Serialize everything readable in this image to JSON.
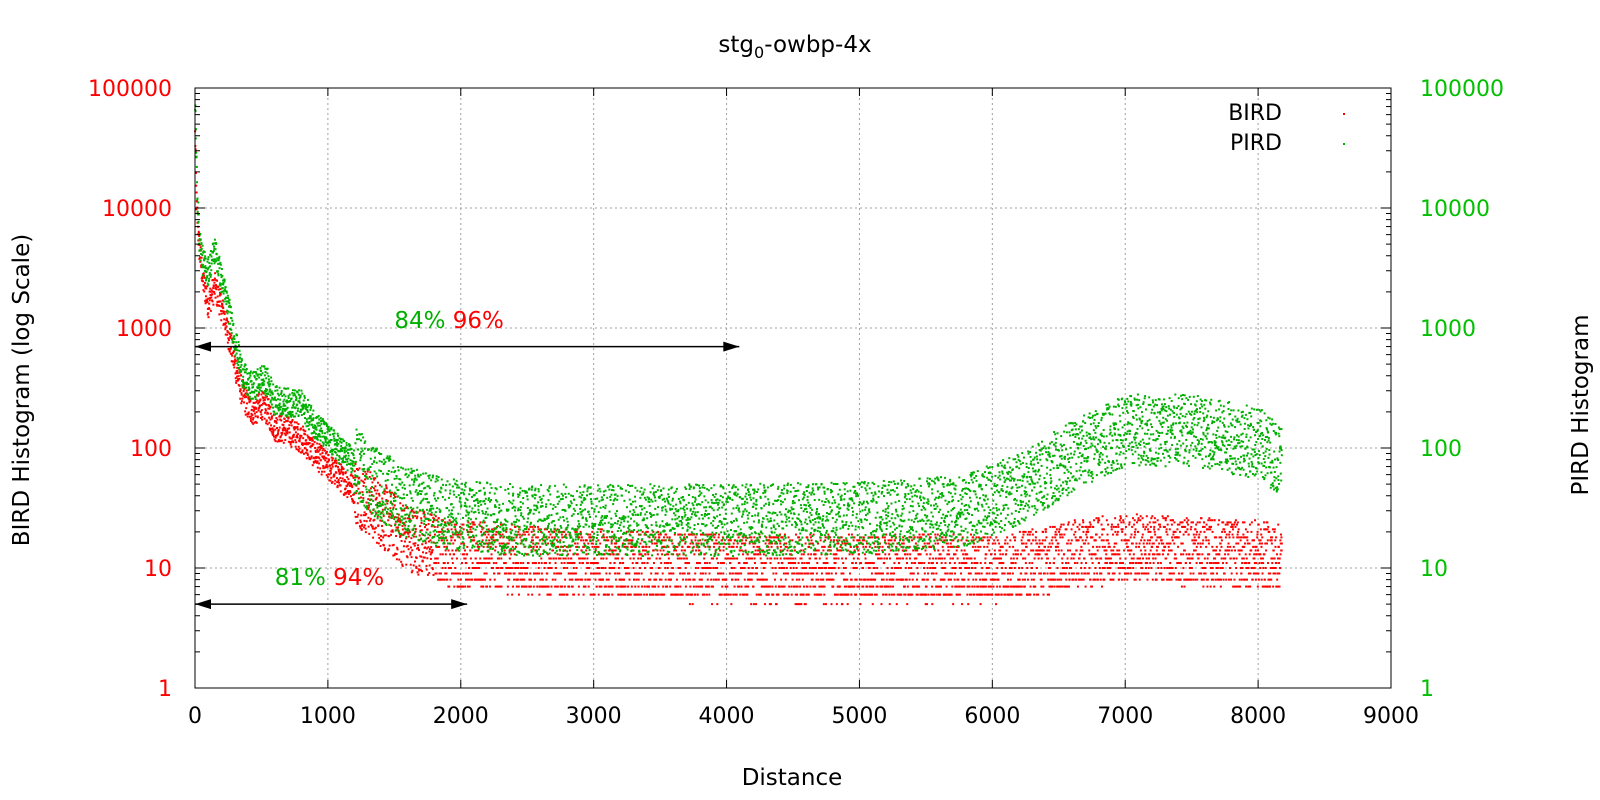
{
  "chart_data": {
    "type": "scatter",
    "title": {
      "base": "stg",
      "sub": "0",
      "rest": "-owbp-4x"
    },
    "xlabel": "Distance",
    "ylabel": "BIRD Histogram (log Scale)",
    "y2label": "PIRD Histogram",
    "xlim": [
      0,
      9000
    ],
    "ylim": [
      1,
      100000
    ],
    "yscale": "log",
    "grid": true,
    "legend_position": "top-right",
    "x_ticks": [
      "0",
      "1000",
      "2000",
      "3000",
      "4000",
      "5000",
      "6000",
      "7000",
      "8000",
      "9000"
    ],
    "y_ticks": [
      "1",
      "10",
      "100",
      "1000",
      "10000",
      "100000"
    ],
    "y2_ticks": [
      "1",
      "10",
      "100",
      "1000",
      "10000",
      "100000"
    ],
    "left_axis_color": "#ff0000",
    "right_axis_color": "#00c000",
    "series": [
      {
        "name": "BIRD",
        "color": "#ff0000",
        "trend": [
          [
            2,
            40000
          ],
          [
            10,
            12000
          ],
          [
            30,
            5000
          ],
          [
            60,
            2500
          ],
          [
            100,
            1600
          ],
          [
            150,
            2200
          ],
          [
            200,
            1500
          ],
          [
            250,
            900
          ],
          [
            300,
            500
          ],
          [
            350,
            300
          ],
          [
            400,
            220
          ],
          [
            450,
            200
          ],
          [
            500,
            230
          ],
          [
            550,
            200
          ],
          [
            600,
            150
          ],
          [
            700,
            140
          ],
          [
            800,
            120
          ],
          [
            900,
            90
          ],
          [
            1000,
            70
          ],
          [
            1200,
            45
          ],
          [
            1400,
            28
          ],
          [
            1600,
            18
          ],
          [
            1800,
            15
          ],
          [
            2000,
            13
          ],
          [
            3000,
            11
          ],
          [
            4000,
            10
          ],
          [
            5000,
            10
          ],
          [
            6000,
            10
          ],
          [
            6300,
            11
          ],
          [
            6600,
            13
          ],
          [
            7000,
            15
          ],
          [
            7500,
            14
          ],
          [
            8000,
            13
          ],
          [
            8180,
            12
          ]
        ],
        "x_max": 8180
      },
      {
        "name": "PIRD",
        "color": "#00b000",
        "trend": [
          [
            2,
            80000
          ],
          [
            10,
            25000
          ],
          [
            30,
            6000
          ],
          [
            60,
            3500
          ],
          [
            100,
            3000
          ],
          [
            150,
            4500
          ],
          [
            200,
            2500
          ],
          [
            250,
            1500
          ],
          [
            300,
            800
          ],
          [
            350,
            450
          ],
          [
            400,
            330
          ],
          [
            450,
            330
          ],
          [
            500,
            380
          ],
          [
            550,
            350
          ],
          [
            600,
            250
          ],
          [
            700,
            240
          ],
          [
            800,
            230
          ],
          [
            900,
            160
          ],
          [
            1000,
            120
          ],
          [
            1200,
            75
          ],
          [
            1400,
            48
          ],
          [
            1600,
            35
          ],
          [
            1800,
            30
          ],
          [
            2000,
            27
          ],
          [
            2500,
            25
          ],
          [
            3000,
            25
          ],
          [
            4000,
            25
          ],
          [
            5000,
            26
          ],
          [
            5800,
            30
          ],
          [
            6200,
            45
          ],
          [
            6600,
            85
          ],
          [
            7000,
            140
          ],
          [
            7500,
            140
          ],
          [
            8000,
            110
          ],
          [
            8180,
            80
          ]
        ],
        "x_max": 8180
      }
    ],
    "annotations": [
      {
        "arrow_from_x": 0,
        "arrow_to_x": 4096,
        "arrow_y": 700,
        "label_x": 1500,
        "label_y": 1000,
        "text_green": "84%",
        "text_red": "96%"
      },
      {
        "arrow_from_x": 0,
        "arrow_to_x": 2048,
        "arrow_y": 5,
        "label_x": 600,
        "label_y": 7.2,
        "text_green": "81%",
        "text_red": "94%"
      }
    ]
  }
}
